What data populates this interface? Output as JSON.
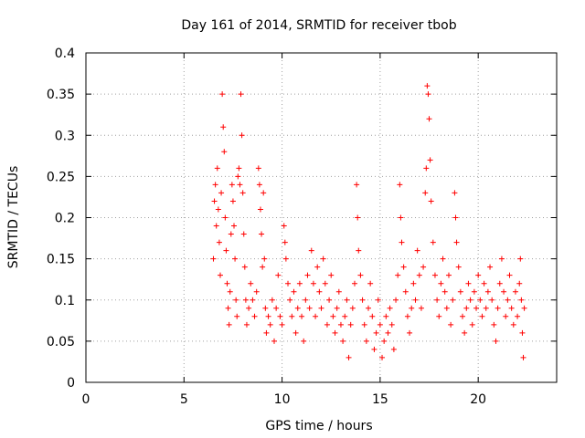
{
  "chart_data": {
    "type": "scatter",
    "title": "Day 161 of 2014, SRMTID for receiver tbob",
    "xlabel": "GPS time / hours",
    "ylabel": "SRMTID / TECUs",
    "xlim": [
      0,
      24
    ],
    "ylim": [
      0,
      0.4
    ],
    "x_ticks": [
      0,
      5,
      10,
      15,
      20
    ],
    "x_tick_labels": [
      "0",
      "5",
      "10",
      "15",
      "20"
    ],
    "y_ticks": [
      0,
      0.05,
      0.1,
      0.15,
      0.2,
      0.25,
      0.3,
      0.35,
      0.4
    ],
    "y_tick_labels": [
      "0",
      "0.05",
      "0.1",
      "0.15",
      "0.2",
      "0.25",
      "0.3",
      "0.35",
      "0.4"
    ],
    "grid": true,
    "marker": "+",
    "color": "#ff0000",
    "series": [
      {
        "name": "SRMTID",
        "points": [
          [
            6.5,
            0.15
          ],
          [
            6.55,
            0.22
          ],
          [
            6.6,
            0.24
          ],
          [
            6.65,
            0.19
          ],
          [
            6.7,
            0.26
          ],
          [
            6.75,
            0.21
          ],
          [
            6.8,
            0.17
          ],
          [
            6.85,
            0.13
          ],
          [
            6.9,
            0.23
          ],
          [
            6.95,
            0.35
          ],
          [
            7.0,
            0.31
          ],
          [
            7.05,
            0.28
          ],
          [
            7.1,
            0.2
          ],
          [
            7.15,
            0.16
          ],
          [
            7.2,
            0.12
          ],
          [
            7.25,
            0.09
          ],
          [
            7.3,
            0.07
          ],
          [
            7.35,
            0.11
          ],
          [
            7.4,
            0.18
          ],
          [
            7.45,
            0.24
          ],
          [
            7.5,
            0.22
          ],
          [
            7.55,
            0.19
          ],
          [
            7.6,
            0.15
          ],
          [
            7.65,
            0.1
          ],
          [
            7.7,
            0.08
          ],
          [
            7.75,
            0.25
          ],
          [
            7.8,
            0.26
          ],
          [
            7.85,
            0.24
          ],
          [
            7.9,
            0.35
          ],
          [
            7.95,
            0.3
          ],
          [
            8.0,
            0.23
          ],
          [
            8.05,
            0.18
          ],
          [
            8.1,
            0.14
          ],
          [
            8.15,
            0.1
          ],
          [
            8.2,
            0.07
          ],
          [
            8.3,
            0.09
          ],
          [
            8.4,
            0.12
          ],
          [
            8.5,
            0.1
          ],
          [
            8.6,
            0.08
          ],
          [
            8.7,
            0.11
          ],
          [
            8.8,
            0.26
          ],
          [
            8.85,
            0.24
          ],
          [
            8.9,
            0.21
          ],
          [
            8.95,
            0.18
          ],
          [
            9.0,
            0.14
          ],
          [
            9.05,
            0.23
          ],
          [
            9.1,
            0.15
          ],
          [
            9.15,
            0.09
          ],
          [
            9.2,
            0.06
          ],
          [
            9.3,
            0.08
          ],
          [
            9.4,
            0.07
          ],
          [
            9.5,
            0.1
          ],
          [
            9.6,
            0.05
          ],
          [
            9.7,
            0.09
          ],
          [
            9.8,
            0.13
          ],
          [
            9.9,
            0.08
          ],
          [
            10.0,
            0.07
          ],
          [
            10.1,
            0.19
          ],
          [
            10.15,
            0.17
          ],
          [
            10.2,
            0.15
          ],
          [
            10.3,
            0.12
          ],
          [
            10.4,
            0.1
          ],
          [
            10.5,
            0.08
          ],
          [
            10.6,
            0.11
          ],
          [
            10.7,
            0.06
          ],
          [
            10.8,
            0.09
          ],
          [
            10.9,
            0.12
          ],
          [
            11.0,
            0.08
          ],
          [
            11.1,
            0.05
          ],
          [
            11.2,
            0.1
          ],
          [
            11.3,
            0.13
          ],
          [
            11.4,
            0.09
          ],
          [
            11.5,
            0.16
          ],
          [
            11.6,
            0.12
          ],
          [
            11.7,
            0.08
          ],
          [
            11.8,
            0.14
          ],
          [
            11.9,
            0.11
          ],
          [
            12.0,
            0.09
          ],
          [
            12.1,
            0.15
          ],
          [
            12.2,
            0.12
          ],
          [
            12.3,
            0.07
          ],
          [
            12.4,
            0.1
          ],
          [
            12.5,
            0.13
          ],
          [
            12.6,
            0.08
          ],
          [
            12.7,
            0.06
          ],
          [
            12.8,
            0.09
          ],
          [
            12.9,
            0.11
          ],
          [
            13.0,
            0.07
          ],
          [
            13.1,
            0.05
          ],
          [
            13.2,
            0.08
          ],
          [
            13.3,
            0.1
          ],
          [
            13.4,
            0.03
          ],
          [
            13.5,
            0.07
          ],
          [
            13.6,
            0.09
          ],
          [
            13.7,
            0.12
          ],
          [
            13.8,
            0.24
          ],
          [
            13.85,
            0.2
          ],
          [
            13.9,
            0.16
          ],
          [
            14.0,
            0.13
          ],
          [
            14.1,
            0.1
          ],
          [
            14.2,
            0.07
          ],
          [
            14.3,
            0.05
          ],
          [
            14.4,
            0.09
          ],
          [
            14.5,
            0.12
          ],
          [
            14.6,
            0.08
          ],
          [
            14.7,
            0.04
          ],
          [
            14.8,
            0.06
          ],
          [
            14.9,
            0.1
          ],
          [
            15.0,
            0.07
          ],
          [
            15.1,
            0.03
          ],
          [
            15.2,
            0.05
          ],
          [
            15.3,
            0.08
          ],
          [
            15.4,
            0.06
          ],
          [
            15.5,
            0.09
          ],
          [
            15.6,
            0.07
          ],
          [
            15.7,
            0.04
          ],
          [
            15.8,
            0.1
          ],
          [
            15.9,
            0.13
          ],
          [
            16.0,
            0.24
          ],
          [
            16.05,
            0.2
          ],
          [
            16.1,
            0.17
          ],
          [
            16.2,
            0.14
          ],
          [
            16.3,
            0.11
          ],
          [
            16.4,
            0.08
          ],
          [
            16.5,
            0.06
          ],
          [
            16.6,
            0.09
          ],
          [
            16.7,
            0.12
          ],
          [
            16.8,
            0.1
          ],
          [
            16.9,
            0.16
          ],
          [
            17.0,
            0.13
          ],
          [
            17.1,
            0.09
          ],
          [
            17.2,
            0.14
          ],
          [
            17.3,
            0.23
          ],
          [
            17.35,
            0.26
          ],
          [
            17.4,
            0.36
          ],
          [
            17.45,
            0.35
          ],
          [
            17.5,
            0.32
          ],
          [
            17.55,
            0.27
          ],
          [
            17.6,
            0.22
          ],
          [
            17.7,
            0.17
          ],
          [
            17.8,
            0.13
          ],
          [
            17.9,
            0.1
          ],
          [
            18.0,
            0.08
          ],
          [
            18.1,
            0.12
          ],
          [
            18.2,
            0.15
          ],
          [
            18.3,
            0.11
          ],
          [
            18.4,
            0.09
          ],
          [
            18.5,
            0.13
          ],
          [
            18.6,
            0.07
          ],
          [
            18.7,
            0.1
          ],
          [
            18.8,
            0.23
          ],
          [
            18.85,
            0.2
          ],
          [
            18.9,
            0.17
          ],
          [
            19.0,
            0.14
          ],
          [
            19.1,
            0.11
          ],
          [
            19.2,
            0.08
          ],
          [
            19.3,
            0.06
          ],
          [
            19.4,
            0.09
          ],
          [
            19.5,
            0.12
          ],
          [
            19.6,
            0.1
          ],
          [
            19.7,
            0.07
          ],
          [
            19.8,
            0.11
          ],
          [
            19.9,
            0.09
          ],
          [
            20.0,
            0.13
          ],
          [
            20.1,
            0.1
          ],
          [
            20.2,
            0.08
          ],
          [
            20.3,
            0.12
          ],
          [
            20.4,
            0.09
          ],
          [
            20.5,
            0.11
          ],
          [
            20.6,
            0.14
          ],
          [
            20.7,
            0.1
          ],
          [
            20.8,
            0.07
          ],
          [
            20.9,
            0.05
          ],
          [
            21.0,
            0.09
          ],
          [
            21.1,
            0.12
          ],
          [
            21.2,
            0.15
          ],
          [
            21.3,
            0.11
          ],
          [
            21.4,
            0.08
          ],
          [
            21.5,
            0.1
          ],
          [
            21.6,
            0.13
          ],
          [
            21.7,
            0.09
          ],
          [
            21.8,
            0.07
          ],
          [
            21.9,
            0.11
          ],
          [
            22.0,
            0.08
          ],
          [
            22.1,
            0.12
          ],
          [
            22.15,
            0.15
          ],
          [
            22.2,
            0.1
          ],
          [
            22.25,
            0.06
          ],
          [
            22.3,
            0.03
          ],
          [
            22.35,
            0.09
          ]
        ]
      }
    ]
  }
}
